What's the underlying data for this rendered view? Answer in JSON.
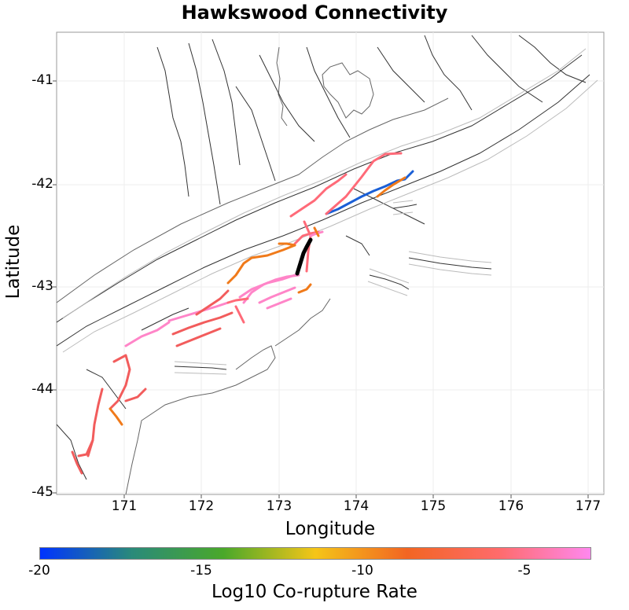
{
  "title": "Hawkswood Connectivity",
  "xaxis": {
    "label": "Longitude",
    "ticks": [
      "171",
      "172",
      "173",
      "174",
      "175",
      "176",
      "177"
    ]
  },
  "yaxis": {
    "label": "Latitude",
    "ticks": [
      "-41",
      "-42",
      "-43",
      "-44",
      "-45"
    ]
  },
  "colorbar": {
    "label": "Log10 Co-rupture Rate",
    "ticks": [
      "-20",
      "-15",
      "-10",
      "-5"
    ],
    "colors": [
      "#0033ff",
      "#2a8a7a",
      "#4aa82a",
      "#f5c518",
      "#f26522",
      "#ff6b6b",
      "#ff88ee"
    ]
  },
  "legend_colors": {
    "source": "#000000",
    "blue": "#1a5fd6",
    "orange": "#f07a1a",
    "red": "#f25c5c",
    "coral": "#ff6a78",
    "pink": "#ff85c8"
  }
}
